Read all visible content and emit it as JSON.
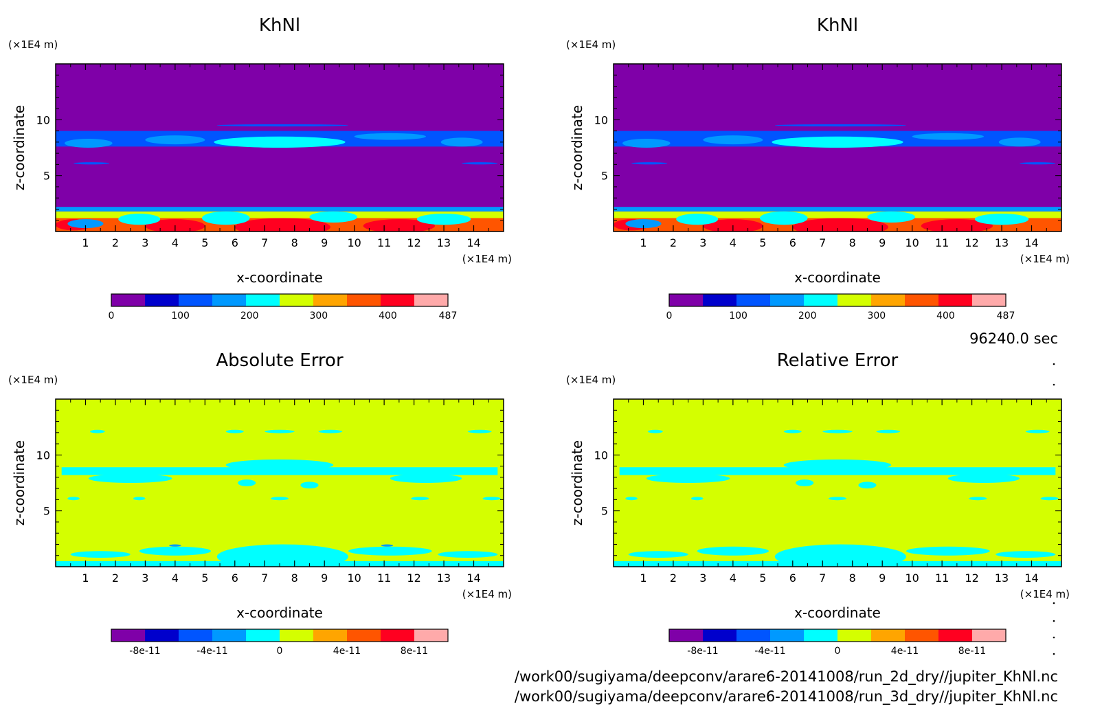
{
  "palette": [
    "#7f00a8",
    "#0000cc",
    "#0055ff",
    "#0099ff",
    "#00ffff",
    "#d4ff00",
    "#ffa500",
    "#ff5500",
    "#ff0020",
    "#ffaaaa"
  ],
  "time_label": "96240.0 sec",
  "file_paths": [
    "/work00/sugiyama/deepconv/arare6-20141008/run_2d_dry//jupiter_KhNl.nc",
    "/work00/sugiyama/deepconv/arare6-20141008/run_3d_dry//jupiter_KhNl.nc"
  ],
  "chart_data": [
    {
      "type": "heatmap",
      "title": "KhNl",
      "xlabel": "x-coordinate",
      "ylabel": "z-coordinate",
      "x_unit": "(×1E4 m)",
      "y_unit": "(×1E4 m)",
      "xlim": [
        0,
        15
      ],
      "ylim": [
        0,
        15
      ],
      "x_ticks": [
        "1",
        "2",
        "3",
        "4",
        "5",
        "6",
        "7",
        "8",
        "9",
        "10",
        "11",
        "12",
        "13",
        "14"
      ],
      "y_ticks": [
        "5",
        "10"
      ],
      "colorbar": {
        "range": [
          0,
          487
        ],
        "labels": [
          {
            "v": 0,
            "t": "0"
          },
          {
            "v": 100,
            "t": "100"
          },
          {
            "v": 200,
            "t": "200"
          },
          {
            "v": 300,
            "t": "300"
          },
          {
            "v": 400,
            "t": "400"
          },
          {
            "v": 487,
            "t": "487"
          }
        ]
      },
      "background_level": 0,
      "features": [
        {
          "kind": "band",
          "x0": 0,
          "x1": 15,
          "z0": 0,
          "z1": 1.2,
          "level": 7
        },
        {
          "kind": "band",
          "x0": 0,
          "x1": 15,
          "z0": 1.2,
          "z1": 1.8,
          "level": 5
        },
        {
          "kind": "band",
          "x0": 0,
          "x1": 15,
          "z0": 1.8,
          "z1": 2.2,
          "level": 3
        },
        {
          "kind": "band",
          "x0": 0,
          "x1": 15,
          "z0": 7.6,
          "z1": 9.0,
          "level": 2
        },
        {
          "kind": "blob",
          "cx": 7.6,
          "cz": 0.4,
          "rx": 1.6,
          "rz": 0.8,
          "level": 8
        },
        {
          "kind": "blob",
          "cx": 0.6,
          "cz": 0.6,
          "rx": 0.6,
          "rz": 0.5,
          "level": 8
        },
        {
          "kind": "blob",
          "cx": 4,
          "cz": 0.5,
          "rx": 1,
          "rz": 0.6,
          "level": 8
        },
        {
          "kind": "blob",
          "cx": 11.5,
          "cz": 0.5,
          "rx": 1.2,
          "rz": 0.6,
          "level": 8
        },
        {
          "kind": "blob",
          "cx": 1,
          "cz": 0.7,
          "rx": 0.6,
          "rz": 0.4,
          "level": 3
        },
        {
          "kind": "blob",
          "cx": 5.7,
          "cz": 1.2,
          "rx": 0.8,
          "rz": 0.6,
          "level": 4
        },
        {
          "kind": "blob",
          "cx": 9.3,
          "cz": 1.3,
          "rx": 0.8,
          "rz": 0.5,
          "level": 4
        },
        {
          "kind": "blob",
          "cx": 13,
          "cz": 1.1,
          "rx": 0.9,
          "rz": 0.5,
          "level": 4
        },
        {
          "kind": "blob",
          "cx": 2.8,
          "cz": 1.1,
          "rx": 0.7,
          "rz": 0.5,
          "level": 4
        },
        {
          "kind": "blob",
          "cx": 7.5,
          "cz": 8.0,
          "rx": 2.2,
          "rz": 0.5,
          "level": 4
        },
        {
          "kind": "blob",
          "cx": 1.1,
          "cz": 7.9,
          "rx": 0.8,
          "rz": 0.4,
          "level": 3
        },
        {
          "kind": "blob",
          "cx": 4,
          "cz": 8.2,
          "rx": 1,
          "rz": 0.4,
          "level": 3
        },
        {
          "kind": "blob",
          "cx": 13.6,
          "cz": 8.0,
          "rx": 0.7,
          "rz": 0.4,
          "level": 3
        },
        {
          "kind": "blob",
          "cx": 11.2,
          "cz": 8.5,
          "rx": 1.2,
          "rz": 0.3,
          "level": 3
        },
        {
          "kind": "blob",
          "cx": 1.2,
          "cz": 6.1,
          "rx": 0.6,
          "rz": 0.1,
          "level": 2
        },
        {
          "kind": "blob",
          "cx": 14.2,
          "cz": 6.1,
          "rx": 0.6,
          "rz": 0.1,
          "level": 2
        },
        {
          "kind": "blob",
          "cx": 7.6,
          "cz": 9.5,
          "rx": 2.2,
          "rz": 0.1,
          "level": 2
        }
      ]
    },
    {
      "type": "heatmap",
      "title": "KhNl",
      "xlabel": "x-coordinate",
      "ylabel": "z-coordinate",
      "x_unit": "(×1E4 m)",
      "y_unit": "(×1E4 m)",
      "xlim": [
        0,
        15
      ],
      "ylim": [
        0,
        15
      ],
      "x_ticks": [
        "1",
        "2",
        "3",
        "4",
        "5",
        "6",
        "7",
        "8",
        "9",
        "10",
        "11",
        "12",
        "13",
        "14"
      ],
      "y_ticks": [
        "5",
        "10"
      ],
      "colorbar": {
        "range": [
          0,
          487
        ],
        "labels": [
          {
            "v": 0,
            "t": "0"
          },
          {
            "v": 100,
            "t": "100"
          },
          {
            "v": 200,
            "t": "200"
          },
          {
            "v": 300,
            "t": "300"
          },
          {
            "v": 400,
            "t": "400"
          },
          {
            "v": 487,
            "t": "487"
          }
        ]
      },
      "background_level": 0,
      "features": [
        {
          "kind": "band",
          "x0": 0,
          "x1": 15,
          "z0": 0,
          "z1": 1.2,
          "level": 7
        },
        {
          "kind": "band",
          "x0": 0,
          "x1": 15,
          "z0": 1.2,
          "z1": 1.8,
          "level": 5
        },
        {
          "kind": "band",
          "x0": 0,
          "x1": 15,
          "z0": 1.8,
          "z1": 2.2,
          "level": 3
        },
        {
          "kind": "band",
          "x0": 0,
          "x1": 15,
          "z0": 7.6,
          "z1": 9.0,
          "level": 2
        },
        {
          "kind": "blob",
          "cx": 7.6,
          "cz": 0.4,
          "rx": 1.6,
          "rz": 0.8,
          "level": 8
        },
        {
          "kind": "blob",
          "cx": 0.6,
          "cz": 0.6,
          "rx": 0.6,
          "rz": 0.5,
          "level": 8
        },
        {
          "kind": "blob",
          "cx": 4,
          "cz": 0.5,
          "rx": 1,
          "rz": 0.6,
          "level": 8
        },
        {
          "kind": "blob",
          "cx": 11.5,
          "cz": 0.5,
          "rx": 1.2,
          "rz": 0.6,
          "level": 8
        },
        {
          "kind": "blob",
          "cx": 1,
          "cz": 0.7,
          "rx": 0.6,
          "rz": 0.4,
          "level": 3
        },
        {
          "kind": "blob",
          "cx": 5.7,
          "cz": 1.2,
          "rx": 0.8,
          "rz": 0.6,
          "level": 4
        },
        {
          "kind": "blob",
          "cx": 9.3,
          "cz": 1.3,
          "rx": 0.8,
          "rz": 0.5,
          "level": 4
        },
        {
          "kind": "blob",
          "cx": 13,
          "cz": 1.1,
          "rx": 0.9,
          "rz": 0.5,
          "level": 4
        },
        {
          "kind": "blob",
          "cx": 2.8,
          "cz": 1.1,
          "rx": 0.7,
          "rz": 0.5,
          "level": 4
        },
        {
          "kind": "blob",
          "cx": 7.5,
          "cz": 8.0,
          "rx": 2.2,
          "rz": 0.5,
          "level": 4
        },
        {
          "kind": "blob",
          "cx": 1.1,
          "cz": 7.9,
          "rx": 0.8,
          "rz": 0.4,
          "level": 3
        },
        {
          "kind": "blob",
          "cx": 4,
          "cz": 8.2,
          "rx": 1,
          "rz": 0.4,
          "level": 3
        },
        {
          "kind": "blob",
          "cx": 13.6,
          "cz": 8.0,
          "rx": 0.7,
          "rz": 0.4,
          "level": 3
        },
        {
          "kind": "blob",
          "cx": 11.2,
          "cz": 8.5,
          "rx": 1.2,
          "rz": 0.3,
          "level": 3
        },
        {
          "kind": "blob",
          "cx": 1.2,
          "cz": 6.1,
          "rx": 0.6,
          "rz": 0.1,
          "level": 2
        },
        {
          "kind": "blob",
          "cx": 14.2,
          "cz": 6.1,
          "rx": 0.6,
          "rz": 0.1,
          "level": 2
        },
        {
          "kind": "blob",
          "cx": 7.6,
          "cz": 9.5,
          "rx": 2.2,
          "rz": 0.1,
          "level": 2
        }
      ]
    },
    {
      "type": "heatmap",
      "title": "Absolute Error",
      "xlabel": "x-coordinate",
      "ylabel": "z-coordinate",
      "x_unit": "(×1E4 m)",
      "y_unit": "(×1E4 m)",
      "xlim": [
        0,
        15
      ],
      "ylim": [
        0,
        15
      ],
      "x_ticks": [
        "1",
        "2",
        "3",
        "4",
        "5",
        "6",
        "7",
        "8",
        "9",
        "10",
        "11",
        "12",
        "13",
        "14"
      ],
      "y_ticks": [
        "5",
        "10"
      ],
      "colorbar": {
        "range": [
          -1e-10,
          1e-10
        ],
        "labels": [
          {
            "v": -8e-11,
            "t": "-8e-11"
          },
          {
            "v": -4e-11,
            "t": "-4e-11"
          },
          {
            "v": 0,
            "t": "0"
          },
          {
            "v": 4e-11,
            "t": "4e-11"
          },
          {
            "v": 8e-11,
            "t": "8e-11"
          }
        ]
      },
      "background_level": 5,
      "features": [
        {
          "kind": "band",
          "x0": 0,
          "x1": 15,
          "z0": 0,
          "z1": 0.5,
          "level": 4
        },
        {
          "kind": "blob",
          "cx": 7.6,
          "cz": 0.9,
          "rx": 2.2,
          "rz": 1.1,
          "level": 4
        },
        {
          "kind": "blob",
          "cx": 4,
          "cz": 1.4,
          "rx": 1.2,
          "rz": 0.4,
          "level": 4
        },
        {
          "kind": "blob",
          "cx": 11.2,
          "cz": 1.4,
          "rx": 1.4,
          "rz": 0.4,
          "level": 4
        },
        {
          "kind": "blob",
          "cx": 1.5,
          "cz": 1.1,
          "rx": 1,
          "rz": 0.3,
          "level": 4
        },
        {
          "kind": "blob",
          "cx": 13.8,
          "cz": 1.1,
          "rx": 1,
          "rz": 0.3,
          "level": 4
        },
        {
          "kind": "blob",
          "cx": 4,
          "cz": 1.9,
          "rx": 0.2,
          "rz": 0.1,
          "level": 3
        },
        {
          "kind": "blob",
          "cx": 11.1,
          "cz": 1.9,
          "rx": 0.2,
          "rz": 0.1,
          "level": 3
        },
        {
          "kind": "band",
          "x0": 0.2,
          "x1": 14.8,
          "z0": 8.2,
          "z1": 8.9,
          "level": 4
        },
        {
          "kind": "blob",
          "cx": 7.5,
          "cz": 9.1,
          "rx": 1.8,
          "rz": 0.5,
          "level": 4
        },
        {
          "kind": "blob",
          "cx": 2.5,
          "cz": 7.9,
          "rx": 1.4,
          "rz": 0.4,
          "level": 4
        },
        {
          "kind": "blob",
          "cx": 12.4,
          "cz": 7.9,
          "rx": 1.2,
          "rz": 0.4,
          "level": 4
        },
        {
          "kind": "blob",
          "cx": 6.4,
          "cz": 7.5,
          "rx": 0.3,
          "rz": 0.3,
          "level": 4
        },
        {
          "kind": "blob",
          "cx": 8.5,
          "cz": 7.3,
          "rx": 0.3,
          "rz": 0.3,
          "level": 4
        },
        {
          "kind": "blob",
          "cx": 0.6,
          "cz": 6.1,
          "rx": 0.2,
          "rz": 0.15,
          "level": 4
        },
        {
          "kind": "blob",
          "cx": 2.8,
          "cz": 6.1,
          "rx": 0.2,
          "rz": 0.15,
          "level": 4
        },
        {
          "kind": "blob",
          "cx": 7.5,
          "cz": 6.1,
          "rx": 0.3,
          "rz": 0.15,
          "level": 4
        },
        {
          "kind": "blob",
          "cx": 12.2,
          "cz": 6.1,
          "rx": 0.3,
          "rz": 0.15,
          "level": 4
        },
        {
          "kind": "blob",
          "cx": 14.6,
          "cz": 6.1,
          "rx": 0.3,
          "rz": 0.15,
          "level": 4
        },
        {
          "kind": "blob",
          "cx": 1.4,
          "cz": 12.1,
          "rx": 0.25,
          "rz": 0.15,
          "level": 4
        },
        {
          "kind": "blob",
          "cx": 6,
          "cz": 12.1,
          "rx": 0.3,
          "rz": 0.15,
          "level": 4
        },
        {
          "kind": "blob",
          "cx": 7.5,
          "cz": 12.1,
          "rx": 0.5,
          "rz": 0.15,
          "level": 4
        },
        {
          "kind": "blob",
          "cx": 9.2,
          "cz": 12.1,
          "rx": 0.4,
          "rz": 0.15,
          "level": 4
        },
        {
          "kind": "blob",
          "cx": 14.2,
          "cz": 12.1,
          "rx": 0.4,
          "rz": 0.15,
          "level": 4
        }
      ]
    },
    {
      "type": "heatmap",
      "title": "Relative Error",
      "xlabel": "x-coordinate",
      "ylabel": "z-coordinate",
      "x_unit": "(×1E4 m)",
      "y_unit": "(×1E4 m)",
      "xlim": [
        0,
        15
      ],
      "ylim": [
        0,
        15
      ],
      "x_ticks": [
        "1",
        "2",
        "3",
        "4",
        "5",
        "6",
        "7",
        "8",
        "9",
        "10",
        "11",
        "12",
        "13",
        "14"
      ],
      "y_ticks": [
        "5",
        "10"
      ],
      "colorbar": {
        "range": [
          -1e-10,
          1e-10
        ],
        "labels": [
          {
            "v": -8e-11,
            "t": "-8e-11"
          },
          {
            "v": -4e-11,
            "t": "-4e-11"
          },
          {
            "v": 0,
            "t": "0"
          },
          {
            "v": 4e-11,
            "t": "4e-11"
          },
          {
            "v": 8e-11,
            "t": "8e-11"
          }
        ]
      },
      "background_level": 5,
      "features": [
        {
          "kind": "band",
          "x0": 0,
          "x1": 15,
          "z0": 0,
          "z1": 0.5,
          "level": 4
        },
        {
          "kind": "blob",
          "cx": 7.6,
          "cz": 0.9,
          "rx": 2.2,
          "rz": 1.1,
          "level": 4
        },
        {
          "kind": "blob",
          "cx": 4,
          "cz": 1.4,
          "rx": 1.2,
          "rz": 0.4,
          "level": 4
        },
        {
          "kind": "blob",
          "cx": 11.2,
          "cz": 1.4,
          "rx": 1.4,
          "rz": 0.4,
          "level": 4
        },
        {
          "kind": "blob",
          "cx": 1.5,
          "cz": 1.1,
          "rx": 1,
          "rz": 0.3,
          "level": 4
        },
        {
          "kind": "blob",
          "cx": 13.8,
          "cz": 1.1,
          "rx": 1,
          "rz": 0.3,
          "level": 4
        },
        {
          "kind": "band",
          "x0": 0.2,
          "x1": 14.8,
          "z0": 8.2,
          "z1": 8.9,
          "level": 4
        },
        {
          "kind": "blob",
          "cx": 7.5,
          "cz": 9.1,
          "rx": 1.8,
          "rz": 0.5,
          "level": 4
        },
        {
          "kind": "blob",
          "cx": 2.5,
          "cz": 7.9,
          "rx": 1.4,
          "rz": 0.4,
          "level": 4
        },
        {
          "kind": "blob",
          "cx": 12.4,
          "cz": 7.9,
          "rx": 1.2,
          "rz": 0.4,
          "level": 4
        },
        {
          "kind": "blob",
          "cx": 6.4,
          "cz": 7.5,
          "rx": 0.3,
          "rz": 0.3,
          "level": 4
        },
        {
          "kind": "blob",
          "cx": 8.5,
          "cz": 7.3,
          "rx": 0.3,
          "rz": 0.3,
          "level": 4
        },
        {
          "kind": "blob",
          "cx": 0.6,
          "cz": 6.1,
          "rx": 0.2,
          "rz": 0.15,
          "level": 4
        },
        {
          "kind": "blob",
          "cx": 2.8,
          "cz": 6.1,
          "rx": 0.2,
          "rz": 0.15,
          "level": 4
        },
        {
          "kind": "blob",
          "cx": 7.5,
          "cz": 6.1,
          "rx": 0.3,
          "rz": 0.15,
          "level": 4
        },
        {
          "kind": "blob",
          "cx": 12.2,
          "cz": 6.1,
          "rx": 0.3,
          "rz": 0.15,
          "level": 4
        },
        {
          "kind": "blob",
          "cx": 14.6,
          "cz": 6.1,
          "rx": 0.3,
          "rz": 0.15,
          "level": 4
        },
        {
          "kind": "blob",
          "cx": 1.4,
          "cz": 12.1,
          "rx": 0.25,
          "rz": 0.15,
          "level": 4
        },
        {
          "kind": "blob",
          "cx": 6,
          "cz": 12.1,
          "rx": 0.3,
          "rz": 0.15,
          "level": 4
        },
        {
          "kind": "blob",
          "cx": 7.5,
          "cz": 12.1,
          "rx": 0.5,
          "rz": 0.15,
          "level": 4
        },
        {
          "kind": "blob",
          "cx": 9.2,
          "cz": 12.1,
          "rx": 0.4,
          "rz": 0.15,
          "level": 4
        },
        {
          "kind": "blob",
          "cx": 14.2,
          "cz": 12.1,
          "rx": 0.4,
          "rz": 0.15,
          "level": 4
        }
      ]
    }
  ]
}
